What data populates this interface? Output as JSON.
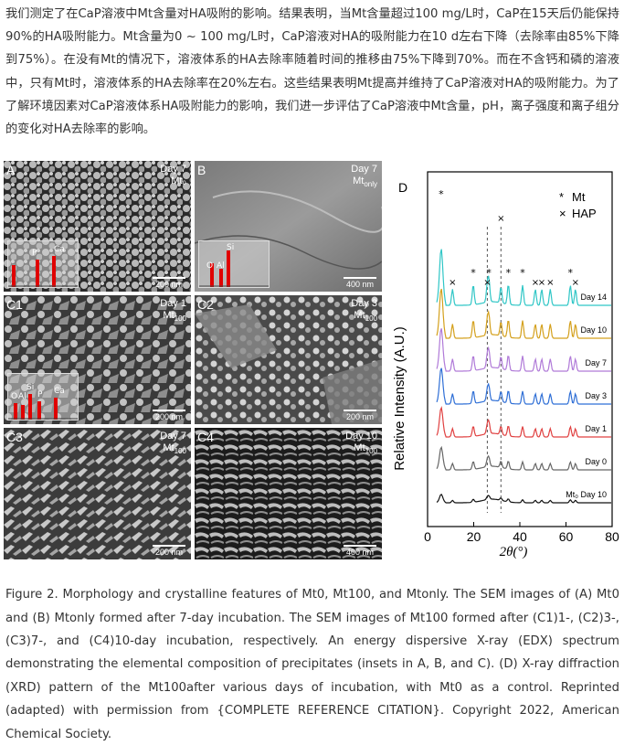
{
  "paragraph": "我们测定了在CaP溶液中Mt含量对HA吸附的影响。结果表明，当Mt含量超过100 mg/L时，CaP在15天后仍能保持90%的HA吸附能力。Mt含量为0 ~ 100 mg/L时，CaP溶液对HA的吸附能力在10 d左右下降（去除率由85%下降到75%）。在没有Mt的情况下，溶液体系的HA去除率随着时间的推移由75%下降到70%。而在不含钙和磷的溶液中，只有Mt时，溶液体系的HA去除率在20%左右。这些结果表明Mt提高并维持了CaP溶液对HA的吸附能力。为了了解环境因素对CaP溶液体系HA吸附能力的影响，我们进一步评估了CaP溶液中Mt含量，pH，离子强度和离子组分的变化对HA去除率的影响。",
  "sem_panels": {
    "A": {
      "label": "A",
      "day": "Day 7",
      "sample": "Mt₀",
      "scale": "200 nm",
      "edx": [
        "P",
        "Ca"
      ]
    },
    "B": {
      "label": "B",
      "day": "Day 7",
      "sample": "Mt_only",
      "scale": "400 nm",
      "edx": [
        "Si",
        "O",
        "Al"
      ]
    },
    "C1": {
      "label": "C1",
      "day": "Day 1",
      "sample": "Mt₁₀₀",
      "scale": "200 nm",
      "edx": [
        "Si",
        "O",
        "Al",
        "P",
        "Ca"
      ]
    },
    "C2": {
      "label": "C2",
      "day": "Day 3",
      "sample": "Mt₁₀₀",
      "scale": "200 nm"
    },
    "C3": {
      "label": "C3",
      "day": "Day 7",
      "sample": "Mt₁₀₀",
      "scale": "200 nm"
    },
    "C4": {
      "label": "C4",
      "day": "Day 10",
      "sample": "Mt₁₀₀",
      "scale": "400 nm"
    }
  },
  "sample_sub": {
    "only": "only",
    "hundred": "100"
  },
  "chart_data": {
    "type": "line",
    "panel_label": "D",
    "xlabel": "2θ(°)",
    "ylabel": "Relative Intensity (A.U.)",
    "xlim": [
      0,
      80
    ],
    "xticks": [
      0,
      20,
      40,
      60,
      80
    ],
    "legend": [
      {
        "marker": "*",
        "name": "Mt"
      },
      {
        "marker": "×",
        "name": "HAP"
      }
    ],
    "reference_lines_2theta": [
      25.9,
      31.8
    ],
    "series": [
      {
        "name": "Day 14",
        "color": "#2fc6c6"
      },
      {
        "name": "Day 10",
        "color": "#d4a01c"
      },
      {
        "name": "Day 7",
        "color": "#b07ad8"
      },
      {
        "name": "Day 3",
        "color": "#2f6fd6"
      },
      {
        "name": "Day 1",
        "color": "#e04040"
      },
      {
        "name": "Day 0",
        "color": "#666666"
      },
      {
        "name": "Mt₀ Day 10",
        "color": "#111111"
      }
    ],
    "peaks_Mt": [
      5.9,
      19.8,
      26.6,
      35.0,
      41.2,
      61.9
    ],
    "peaks_HAP": [
      10.8,
      25.9,
      31.8,
      46.7,
      49.5,
      53.2,
      64.1
    ],
    "mt_marker": "*",
    "hap_marker": "×"
  },
  "caption": "Figure 2. Morphology and crystalline features of Mt0, Mt100, and Mtonly. The SEM images of (A) Mt0 and (B) Mtonly formed after 7-day incubation. The SEM images of Mt100 formed after (C1)1-, (C2)3-, (C3)7-, and (C4)10-day incubation, respectively. An energy dispersive X-ray (EDX) spectrum demonstrating the elemental composition of precipitates (insets in A, B, and C). (D) X-ray diffraction (XRD) pattern of the Mt100after various days of incubation, with Mt0 as a control. Reprinted (adapted) with permission from {COMPLETE REFERENCE CITATION}. Copyright 2022, American Chemical Society."
}
